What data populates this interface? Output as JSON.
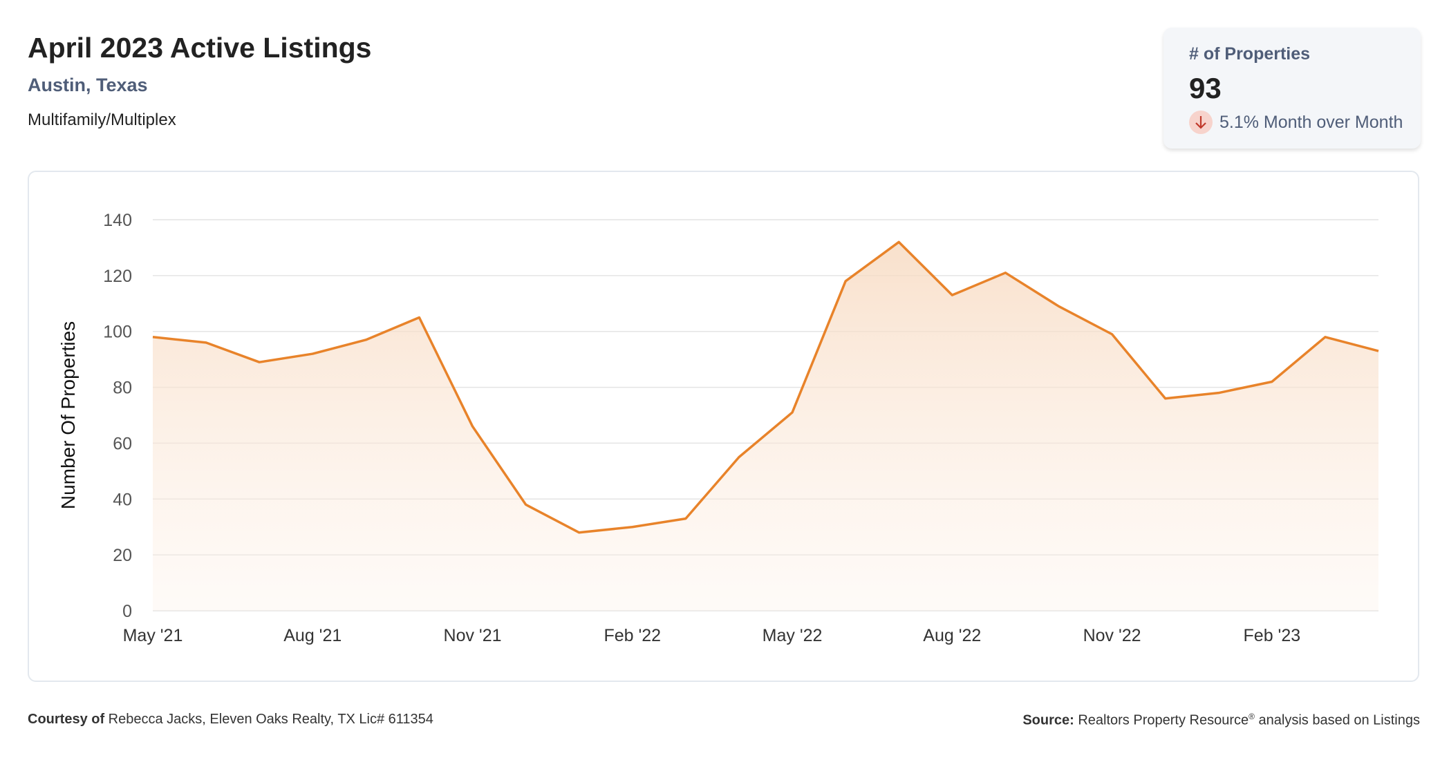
{
  "header": {
    "title": "April 2023 Active Listings",
    "location": "Austin, Texas",
    "property_type": "Multifamily/Multiplex"
  },
  "summary_card": {
    "label": "# of Properties",
    "value": "93",
    "change": "5.1% Month over Month",
    "direction": "down",
    "icon": "arrow-down-icon"
  },
  "chart_data": {
    "type": "area",
    "title": "",
    "xlabel": "",
    "ylabel": "Number Of Properties",
    "x": [
      "May '21",
      "Jun '21",
      "Jul '21",
      "Aug '21",
      "Sep '21",
      "Oct '21",
      "Nov '21",
      "Dec '21",
      "Jan '22",
      "Feb '22",
      "Mar '22",
      "Apr '22",
      "May '22",
      "Jun '22",
      "Jul '22",
      "Aug '22",
      "Sep '22",
      "Oct '22",
      "Nov '22",
      "Dec '22",
      "Jan '23",
      "Feb '23",
      "Mar '23",
      "Apr '23"
    ],
    "values": [
      98,
      96,
      89,
      92,
      97,
      105,
      66,
      38,
      28,
      30,
      33,
      55,
      71,
      118,
      132,
      113,
      121,
      109,
      99,
      76,
      78,
      82,
      98,
      93
    ],
    "xticks": [
      "May '21",
      "Aug '21",
      "Nov '21",
      "Feb '22",
      "May '22",
      "Aug '22",
      "Nov '22",
      "Feb '23"
    ],
    "yticks": [
      0,
      20,
      40,
      60,
      80,
      100,
      120,
      140
    ],
    "ylim": [
      0,
      140
    ],
    "grid": true,
    "line_color": "#e8832a"
  },
  "footer": {
    "courtesy_label": "Courtesy of",
    "courtesy_text": " Rebecca Jacks, Eleven Oaks Realty, TX Lic# 611354",
    "source_label": "Source:",
    "source_text": " Realtors Property Resource",
    "source_reg": "®",
    "source_suffix": " analysis based on Listings"
  }
}
